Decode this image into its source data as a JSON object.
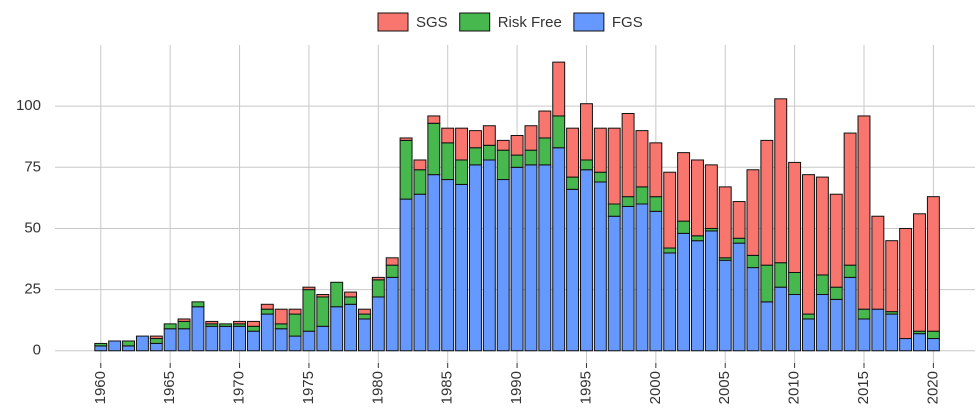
{
  "chart_data": {
    "type": "stacked_bar",
    "x": [
      1960,
      1961,
      1962,
      1963,
      1964,
      1965,
      1966,
      1967,
      1968,
      1969,
      1970,
      1971,
      1972,
      1973,
      1974,
      1975,
      1976,
      1977,
      1978,
      1979,
      1980,
      1981,
      1982,
      1983,
      1984,
      1985,
      1986,
      1987,
      1988,
      1989,
      1990,
      1991,
      1992,
      1993,
      1994,
      1995,
      1996,
      1997,
      1998,
      1999,
      2000,
      2001,
      2002,
      2003,
      2004,
      2005,
      2006,
      2007,
      2008,
      2009,
      2010,
      2011,
      2012,
      2013,
      2014,
      2015,
      2016,
      2017,
      2018,
      2019,
      2020
    ],
    "series": [
      {
        "name": "SGS",
        "color": "#F8766D",
        "values": [
          0,
          0,
          0,
          0,
          1,
          0,
          1,
          0,
          1,
          0,
          1,
          2,
          2,
          6,
          2,
          1,
          1,
          0,
          2,
          2,
          1,
          3,
          1,
          4,
          3,
          6,
          13,
          7,
          8,
          4,
          8,
          10,
          11,
          22,
          20,
          23,
          18,
          31,
          34,
          23,
          22,
          31,
          28,
          31,
          26,
          29,
          15,
          35,
          51,
          67,
          45,
          57,
          40,
          38,
          54,
          79,
          38,
          29,
          45,
          48,
          55
        ]
      },
      {
        "name": "Risk Free",
        "color": "#46B84E",
        "values": [
          1,
          0,
          2,
          0,
          2,
          2,
          3,
          2,
          1,
          1,
          1,
          2,
          2,
          2,
          9,
          17,
          12,
          10,
          3,
          2,
          7,
          5,
          24,
          10,
          21,
          15,
          10,
          7,
          6,
          12,
          5,
          6,
          11,
          13,
          5,
          4,
          4,
          5,
          4,
          7,
          6,
          2,
          5,
          2,
          1,
          1,
          2,
          5,
          15,
          10,
          9,
          2,
          8,
          5,
          5,
          4,
          0,
          1,
          0,
          1,
          3
        ]
      },
      {
        "name": "FGS",
        "color": "#6699FF",
        "values": [
          2,
          4,
          2,
          6,
          3,
          9,
          9,
          18,
          10,
          10,
          10,
          8,
          15,
          9,
          6,
          8,
          10,
          18,
          19,
          13,
          22,
          30,
          62,
          64,
          72,
          70,
          68,
          76,
          78,
          70,
          75,
          76,
          76,
          83,
          66,
          74,
          69,
          55,
          59,
          60,
          57,
          40,
          48,
          45,
          49,
          37,
          44,
          34,
          20,
          26,
          23,
          13,
          23,
          21,
          30,
          13,
          17,
          15,
          5,
          7,
          5
        ]
      }
    ],
    "xlim": [
      1956.7,
      2023
    ],
    "xticks": [
      1960,
      1965,
      1970,
      1975,
      1980,
      1985,
      1990,
      1995,
      2000,
      2005,
      2010,
      2015,
      2020
    ],
    "ylim": [
      -5,
      125
    ],
    "yticks": [
      0,
      25,
      50,
      75,
      100
    ],
    "grid": true,
    "legend": "top"
  }
}
